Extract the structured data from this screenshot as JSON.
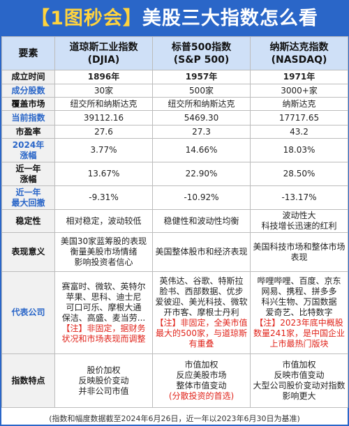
{
  "title": {
    "prefix": "【1图秒会】",
    "main": "美股三大指数怎么看"
  },
  "header": {
    "col0": "要素",
    "col1_l1": "道琼斯工业指数",
    "col1_l2": "(DJIA)",
    "col2_l1": "标普500指数",
    "col2_l2": "(S&P 500)",
    "col3_l1": "纳斯达克指数",
    "col3_l2": "(NASDAQ)"
  },
  "rows": {
    "established": {
      "label": "成立时间",
      "djia": "1896年",
      "sp": "1957年",
      "nasdaq": "1971年"
    },
    "constituents": {
      "label": "成分股数",
      "djia": "30家",
      "sp": "500家",
      "nasdaq": "3000+家"
    },
    "market": {
      "label": "覆盖市场",
      "djia": "纽交所和纳斯达克",
      "sp": "纽交所和纳斯达克",
      "nasdaq": "纳斯达克"
    },
    "current": {
      "label": "当前指数",
      "djia": "39112.16",
      "sp": "5469.30",
      "nasdaq": "17717.65"
    },
    "pe": {
      "label": "市盈率",
      "djia": "27.6",
      "sp": "27.3",
      "nasdaq": "43.2"
    },
    "ytd": {
      "label_l1": "2024年",
      "label_l2": "涨幅",
      "djia": "3.77%",
      "sp": "14.66%",
      "nasdaq": "18.03%"
    },
    "one_year": {
      "label_l1": "近一年",
      "label_l2": "涨幅",
      "djia": "13.67%",
      "sp": "22.90%",
      "nasdaq": "28.50%"
    },
    "drawdown": {
      "label_l1": "近一年",
      "label_l2": "最大回撤",
      "djia": "-9.31%",
      "sp": "-10.92%",
      "nasdaq": "-13.17%"
    },
    "stability": {
      "label": "稳定性",
      "djia": "相对稳定，波动较低",
      "sp": "稳健性和波动性均衡",
      "nasdaq_l1": "波动性大",
      "nasdaq_l2": "科技增长迅速的红利"
    },
    "meaning": {
      "label": "表现意义",
      "djia_l1": "美国30家蓝筹股的表现",
      "djia_l2": "衡量美股市场情绪",
      "djia_l3": "影响投资者信心",
      "sp": "美国整体股市和经济表现",
      "nasdaq_l1": "美国科技市场和整体市场",
      "nasdaq_l2": "表现"
    },
    "companies": {
      "label": "代表公司",
      "djia_l1": "赛富时、微软、英特尔",
      "djia_l2": "苹果、思科、迪士尼",
      "djia_l3": "可口可乐、摩根大通",
      "djia_l4": "保洁、高盛、麦当劳...",
      "djia_n1": "【注】非固定，据财务",
      "djia_n2": "状况和市场表现而调整",
      "sp_l1": "英伟达、谷歌、特斯拉",
      "sp_l2": "脸书、西部数据、优步",
      "sp_l3": "爱彼迎、美光科技、微软",
      "sp_l4": "开市客、摩根士丹利",
      "sp_n1": "【注】非固定，全美市值",
      "sp_n2": "最大的500家，与道琼斯",
      "sp_n3": "有重叠",
      "nasdaq_l1": "哔哩哔哩、百度、京东",
      "nasdaq_l2": "网易、携程、拼多多",
      "nasdaq_l3": "科兴生物、万国数据",
      "nasdaq_l4": "爱奇艺、比特数字",
      "nasdaq_n1": "【注】2023年底中概股",
      "nasdaq_n2": "数量241家，是中国企业",
      "nasdaq_n3": "上市最热门版块"
    },
    "features": {
      "label": "指数特点",
      "djia_l1": "股价加权",
      "djia_l2": "反映股价变动",
      "djia_l3": "并非公司市值",
      "sp_l1": "市值加权",
      "sp_l2": "反应美股市场",
      "sp_l3": "整体市值变动",
      "sp_l4": "(分散投资的首选)",
      "nasdaq_l1": "市值加权",
      "nasdaq_l2": "反映市值变动",
      "nasdaq_l3": "大型公司股价变动对指数",
      "nasdaq_l4": "影响更大"
    }
  },
  "footer": "(指数和幅度数据截至2024年6月26日，近一年以2023年6月30日为基准)",
  "colors": {
    "accent": "#2a66c8",
    "header_bg": "#cfe0f7",
    "highlight": "#e0231a",
    "title_bracket": "#ffd33d"
  }
}
